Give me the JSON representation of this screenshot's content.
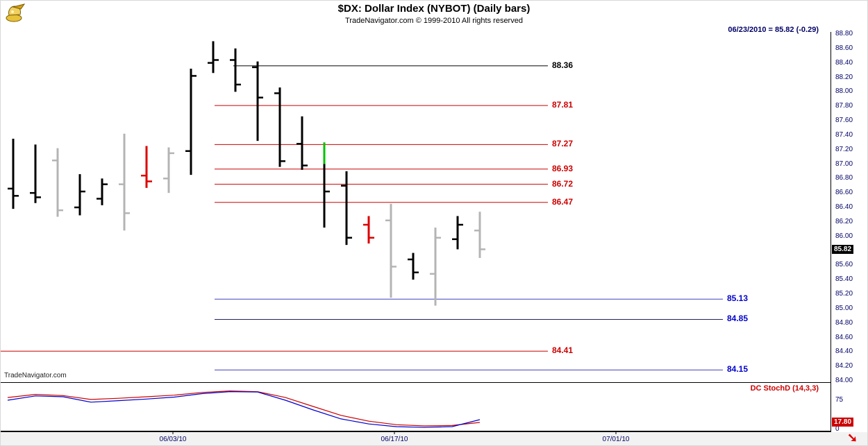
{
  "header": {
    "title": "$DX:  Dollar Index (NYBOT)  (Daily bars)",
    "subtitle": "TradeNavigator.com © 1999-2010 All rights reserved",
    "quote_info": "06/23/2010 = 85.82 (-0.29)"
  },
  "watermark": "TradeNavigator.com",
  "price_badge": "85.82",
  "stoch_badge": "17.80",
  "icons": {
    "logo_name": "gold-money-logo-icon",
    "scroll_glyph": "➘"
  },
  "colors": {
    "black": "#000000",
    "gray": "#b4b4b4",
    "red": "#dd0000",
    "green": "#00c400",
    "axis_text": "#000066",
    "red_label": "#cc0000",
    "blue_label": "#0000cc"
  },
  "chart_data": {
    "type": "bar",
    "subtype": "ohlc-daily-bars",
    "title": "$DX:  Dollar Index (NYBOT)  (Daily bars)",
    "instrument": "$DX Dollar Index (NYBOT)",
    "last_date": "06/23/2010",
    "last_close": 85.82,
    "change": -0.29,
    "grid": "off",
    "price_axis": {
      "min": 84.0,
      "max": 88.8,
      "tick_step": 0.2,
      "ticks": [
        "88.80",
        "88.60",
        "88.40",
        "88.20",
        "88.00",
        "87.80",
        "87.60",
        "87.40",
        "87.20",
        "87.00",
        "86.80",
        "86.60",
        "86.40",
        "86.20",
        "86.00",
        "85.80",
        "85.60",
        "85.40",
        "85.20",
        "85.00",
        "84.80",
        "84.60",
        "84.40",
        "84.20",
        "84.00"
      ]
    },
    "date_axis": {
      "labels": [
        {
          "text": "06/03/10",
          "x": 248
        },
        {
          "text": "06/17/10",
          "x": 567
        },
        {
          "text": "07/01/10",
          "x": 886
        }
      ]
    },
    "bars": [
      {
        "x": 18,
        "color": "black",
        "high": 87.35,
        "low": 86.38,
        "open": 86.66,
        "close": 86.56
      },
      {
        "x": 50,
        "color": "black",
        "high": 87.27,
        "low": 86.46,
        "open": 86.6,
        "close": 86.54
      },
      {
        "x": 82,
        "color": "gray",
        "high": 87.22,
        "low": 86.27,
        "open": 87.05,
        "close": 86.36
      },
      {
        "x": 114,
        "color": "black",
        "high": 86.86,
        "low": 86.29,
        "open": 86.4,
        "close": 86.62
      },
      {
        "x": 146,
        "color": "black",
        "high": 86.8,
        "low": 86.43,
        "open": 86.52,
        "close": 86.72
      },
      {
        "x": 178,
        "color": "gray",
        "high": 87.42,
        "low": 86.08,
        "open": 86.72,
        "close": 86.32
      },
      {
        "x": 210,
        "color": "red",
        "high": 87.25,
        "low": 86.67,
        "open": 86.84,
        "close": 86.76
      },
      {
        "x": 242,
        "color": "gray",
        "high": 87.23,
        "low": 86.6,
        "open": 86.8,
        "close": 87.15
      },
      {
        "x": 274,
        "color": "black",
        "high": 88.32,
        "low": 86.85,
        "open": 87.18,
        "close": 88.22
      },
      {
        "x": 306,
        "color": "black",
        "high": 88.7,
        "low": 88.26,
        "open": 88.4,
        "close": 88.44
      },
      {
        "x": 338,
        "color": "black",
        "high": 88.6,
        "low": 88.0,
        "open": 88.44,
        "close": 88.1
      },
      {
        "x": 370,
        "color": "black",
        "high": 88.42,
        "low": 87.32,
        "open": 88.34,
        "close": 87.92
      },
      {
        "x": 402,
        "color": "black",
        "high": 88.06,
        "low": 86.96,
        "open": 87.98,
        "close": 87.04
      },
      {
        "x": 434,
        "color": "black",
        "high": 87.66,
        "low": 86.92,
        "open": 87.28,
        "close": 86.98
      },
      {
        "x": 466,
        "color": "black",
        "high": 87.3,
        "low": 86.12,
        "open": null,
        "close": 86.62,
        "segments": [
          {
            "hi": 87.3,
            "lo": 87.0,
            "color": "green"
          },
          {
            "hi": 87.0,
            "lo": 86.12,
            "color": "black"
          }
        ]
      },
      {
        "x": 498,
        "color": "black",
        "high": 86.9,
        "low": 85.88,
        "open": 86.7,
        "close": 85.98
      },
      {
        "x": 530,
        "color": "red",
        "high": 86.28,
        "low": 85.9,
        "open": 86.16,
        "close": 85.98
      },
      {
        "x": 562,
        "color": "gray",
        "high": 86.45,
        "low": 85.15,
        "open": 86.22,
        "close": 85.58
      },
      {
        "x": 594,
        "color": "black",
        "high": 85.77,
        "low": 85.4,
        "open": 85.68,
        "close": 85.5
      },
      {
        "x": 626,
        "color": "gray",
        "high": 86.12,
        "low": 85.04,
        "open": 85.48,
        "close": 85.98
      },
      {
        "x": 658,
        "color": "black",
        "high": 86.28,
        "low": 85.82,
        "open": 85.96,
        "close": 86.16
      },
      {
        "x": 690,
        "color": "gray",
        "high": 86.34,
        "low": 85.7,
        "open": 86.08,
        "close": 85.82
      }
    ],
    "levels": [
      {
        "label": "88.36",
        "price": 88.36,
        "color": "#000000",
        "label_color": "#000000",
        "x1": 335,
        "x2": 788
      },
      {
        "label": "87.81",
        "price": 87.81,
        "color": "#cc0000",
        "label_color": "#cc0000",
        "x1": 308,
        "x2": 788
      },
      {
        "label": "87.27",
        "price": 87.27,
        "color": "#cc0000",
        "label_color": "#cc0000",
        "x1": 308,
        "x2": 788
      },
      {
        "label": "86.93",
        "price": 86.93,
        "color": "#cc0000",
        "label_color": "#cc0000",
        "x1": 308,
        "x2": 788
      },
      {
        "label": "86.72",
        "price": 86.72,
        "color": "#cc0000",
        "label_color": "#cc0000",
        "x1": 308,
        "x2": 788
      },
      {
        "label": "86.47",
        "price": 86.47,
        "color": "#cc0000",
        "label_color": "#cc0000",
        "x1": 308,
        "x2": 788
      },
      {
        "label": "85.13",
        "price": 85.13,
        "color": "#4040c0",
        "label_color": "#0000cc",
        "x1": 308,
        "x2": 1040
      },
      {
        "label": "84.85",
        "price": 84.85,
        "color": "#202060",
        "label_color": "#0000cc",
        "x1": 308,
        "x2": 1040
      },
      {
        "label": "84.41",
        "price": 84.41,
        "color": "#cc0000",
        "label_color": "#cc0000",
        "x1": 0,
        "x2": 788
      },
      {
        "label": "84.15",
        "price": 84.15,
        "color": "#4040c0",
        "label_color": "#0000cc",
        "x1": 308,
        "x2": 1040
      }
    ],
    "stoch": {
      "label": "DC StochD (14,3,3)",
      "last_value": 17.8,
      "axis_ticks": [
        {
          "text": "75",
          "value": 75
        },
        {
          "text": "0",
          "value": 0
        }
      ],
      "x": [
        10,
        50,
        90,
        130,
        170,
        210,
        250,
        290,
        330,
        370,
        410,
        450,
        490,
        530,
        570,
        610,
        650,
        690
      ],
      "series": [
        {
          "name": "stochd-red",
          "color": "#cc0000",
          "values": [
            82,
            90,
            87,
            77,
            80,
            84,
            88,
            95,
            99,
            97,
            82,
            59,
            36,
            21,
            12,
            9,
            10,
            17.8
          ]
        },
        {
          "name": "stochd-blue",
          "color": "#0000cc",
          "values": [
            75,
            86,
            84,
            70,
            74,
            78,
            83,
            92,
            97,
            96,
            75,
            50,
            27,
            14,
            7,
            5,
            7,
            25
          ]
        }
      ]
    }
  }
}
